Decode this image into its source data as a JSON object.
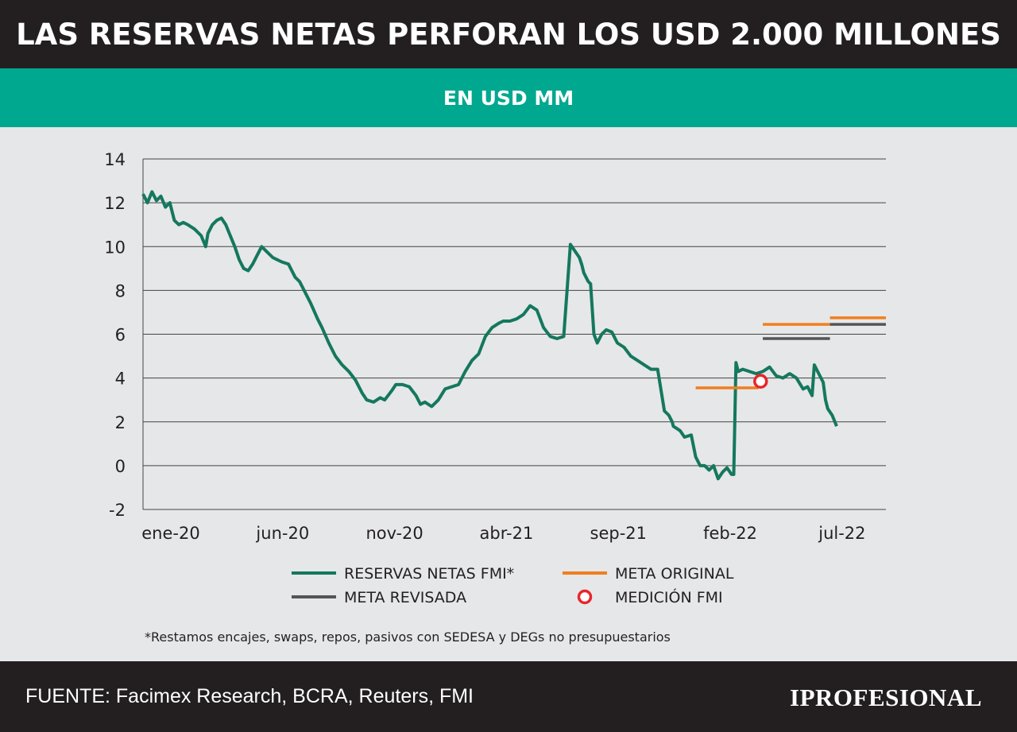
{
  "header": {
    "title": "LAS RESERVAS NETAS PERFORAN LOS USD 2.000 MILLONES",
    "subtitle": "EN USD MM"
  },
  "colors": {
    "title_bg": "#231f20",
    "subtitle_bg": "#00a88f",
    "series_line": "#14785e",
    "meta_original": "#f07f1f",
    "meta_revisada": "#555555",
    "medicion_fmi": "#e8262b",
    "plot_bg": "#e6e7e8",
    "gridline": "#444444"
  },
  "chart_data": {
    "type": "line",
    "title": "LAS RESERVAS NETAS PERFORAN LOS USD 2.000 MILLONES",
    "ylabel": "",
    "xlabel": "",
    "ylim": [
      -2,
      14
    ],
    "yticks": [
      "14",
      "12",
      "10",
      "8",
      "6",
      "4",
      "2",
      "0",
      "-2"
    ],
    "ytick_values": [
      14,
      12,
      10,
      8,
      6,
      4,
      2,
      0,
      -2
    ],
    "xticks": [
      "ene-20",
      "jun-20",
      "nov-20",
      "abr-21",
      "sep-21",
      "feb-22",
      "jul-22"
    ],
    "xtick_months": [
      0,
      5,
      10,
      15,
      20,
      25,
      30
    ],
    "x_range_months": [
      0,
      33.2
    ],
    "grid": true,
    "legend_position": "bottom",
    "series": [
      {
        "name": "RESERVAS NETAS FMI*",
        "kind": "line",
        "x_months": [
          0,
          0.2,
          0.4,
          0.6,
          0.8,
          1.0,
          1.2,
          1.4,
          1.6,
          1.8,
          2.0,
          2.3,
          2.6,
          2.8,
          2.9,
          3.0,
          3.1,
          3.3,
          3.5,
          3.7,
          3.9,
          4.1,
          4.3,
          4.5,
          4.7,
          4.9,
          5.1,
          5.3,
          5.5,
          5.8,
          6.0,
          6.2,
          6.5,
          6.8,
          7.0,
          7.2,
          7.5,
          7.8,
          8.0,
          8.3,
          8.6,
          8.9,
          9.2,
          9.5,
          9.8,
          10.0,
          10.3,
          10.6,
          10.8,
          11.1,
          11.3,
          11.6,
          11.9,
          12.2,
          12.4,
          12.6,
          12.9,
          13.2,
          13.5,
          13.8,
          14.1,
          14.4,
          14.7,
          15.0,
          15.3,
          15.6,
          15.9,
          16.1,
          16.4,
          16.7,
          17.0,
          17.3,
          17.6,
          17.9,
          18.2,
          18.5,
          18.8,
          19.1,
          19.3,
          19.5,
          19.6,
          19.7,
          19.8,
          19.9,
          20.0,
          20.15,
          20.3,
          20.5,
          20.7,
          20.95,
          21.2,
          21.5,
          21.8,
          22.1,
          22.4,
          22.7,
          23.0,
          23.3,
          23.5,
          23.65,
          23.7,
          24.0,
          24.2,
          24.5,
          24.7,
          24.9,
          25.1,
          25.3,
          25.5,
          25.7,
          25.9,
          26.1,
          26.3,
          26.4,
          26.5,
          26.6,
          26.8,
          27.1,
          27.4,
          27.7,
          28.0,
          28.3,
          28.6,
          28.9,
          29.2,
          29.5,
          29.7,
          29.9,
          30.0,
          30.2,
          30.4,
          30.5,
          30.6,
          30.8,
          31.0
        ],
        "y": [
          12.4,
          12.0,
          12.5,
          12.1,
          12.3,
          11.8,
          12.0,
          11.2,
          11.0,
          11.1,
          11.0,
          10.8,
          10.5,
          10.0,
          10.6,
          10.8,
          11.0,
          11.2,
          11.3,
          11.0,
          10.5,
          10.0,
          9.4,
          9.0,
          8.9,
          9.2,
          9.6,
          10.0,
          9.8,
          9.5,
          9.4,
          9.3,
          9.2,
          8.6,
          8.4,
          8.0,
          7.4,
          6.7,
          6.3,
          5.6,
          5.0,
          4.6,
          4.3,
          3.9,
          3.3,
          3.0,
          2.9,
          3.1,
          3.0,
          3.4,
          3.7,
          3.7,
          3.6,
          3.2,
          2.8,
          2.9,
          2.7,
          3.0,
          3.5,
          3.6,
          3.7,
          4.3,
          4.8,
          5.1,
          5.9,
          6.3,
          6.5,
          6.6,
          6.6,
          6.7,
          6.9,
          7.3,
          7.1,
          6.3,
          5.9,
          5.8,
          5.9,
          10.1,
          9.8,
          9.5,
          9.2,
          8.8,
          8.6,
          8.4,
          8.3,
          6.0,
          5.6,
          6.0,
          6.2,
          6.1,
          5.6,
          5.4,
          5.0,
          4.8,
          4.6,
          4.4,
          4.4,
          2.5,
          2.3,
          2.0,
          1.8,
          1.6,
          1.3,
          1.4,
          0.4,
          0.0,
          0.0,
          -0.2,
          0.0,
          -0.6,
          -0.3,
          -0.1,
          -0.4,
          -0.4,
          4.7,
          4.3,
          4.4,
          4.3,
          4.2,
          4.3,
          4.5,
          4.1,
          4.0,
          4.2,
          4.0,
          3.5,
          3.6,
          3.2,
          4.6,
          4.2,
          3.8,
          3.0,
          2.6,
          2.3,
          1.8
        ]
      },
      {
        "name": "META ORIGINAL",
        "kind": "step",
        "segments": [
          {
            "x_months": [
              24.7,
              27.5
            ],
            "y": 3.55
          },
          {
            "x_months": [
              27.7,
              30.7
            ],
            "y": 6.45
          },
          {
            "x_months": [
              30.7,
              33.2
            ],
            "y": 6.75
          }
        ]
      },
      {
        "name": "META REVISADA",
        "kind": "step",
        "segments": [
          {
            "x_months": [
              27.7,
              30.7
            ],
            "y": 5.8
          },
          {
            "x_months": [
              30.7,
              33.2
            ],
            "y": 6.45
          }
        ]
      },
      {
        "name": "MEDICIÓN FMI",
        "kind": "marker",
        "points": [
          {
            "x_months": 27.6,
            "y": 3.85
          }
        ]
      }
    ],
    "legend": [
      {
        "label": "RESERVAS NETAS FMI*",
        "style": "line",
        "color_key": "series_line"
      },
      {
        "label": "META ORIGINAL",
        "style": "line",
        "color_key": "meta_original"
      },
      {
        "label": "META REVISADA",
        "style": "line",
        "color_key": "meta_revisada"
      },
      {
        "label": "MEDICIÓN FMI",
        "style": "circle",
        "color_key": "medicion_fmi"
      }
    ],
    "footnote": "*Restamos encajes, swaps, repos, pasivos con SEDESA y DEGs no presupuestarios"
  },
  "footer": {
    "source": "FUENTE: Facimex Research, BCRA, Reuters, FMI",
    "logo": "IPROFESIONAL"
  }
}
